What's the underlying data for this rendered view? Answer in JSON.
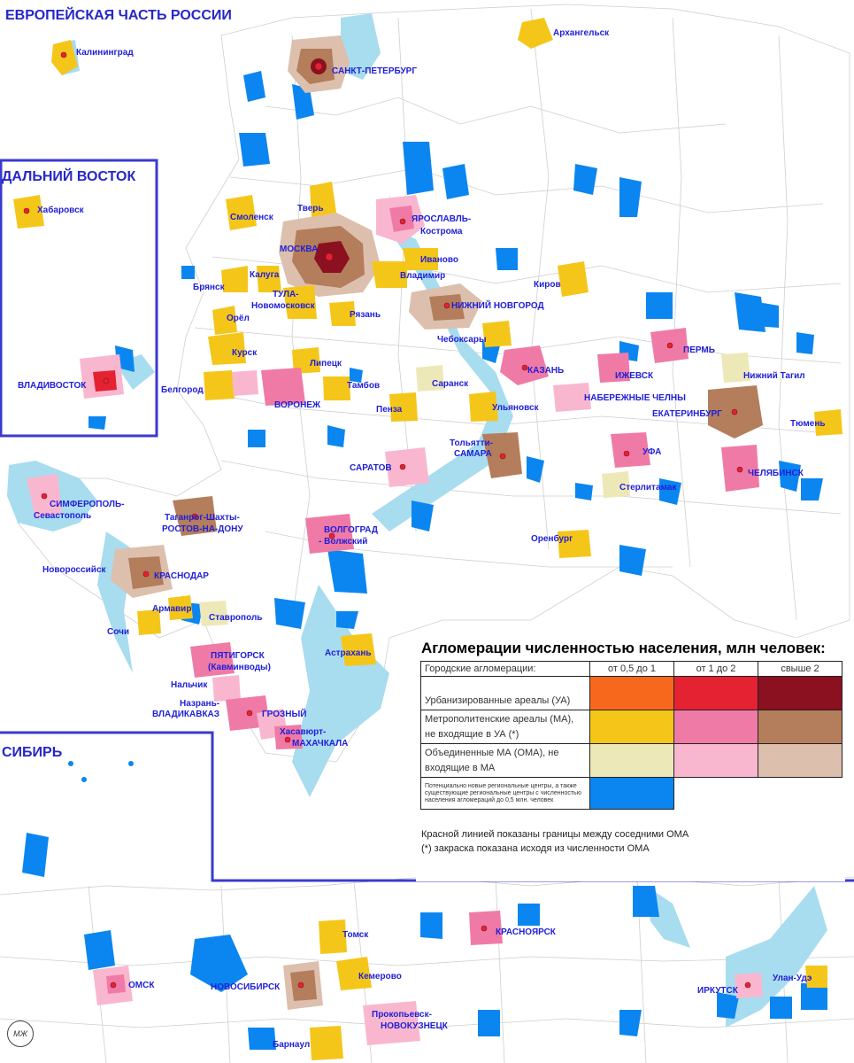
{
  "titles": {
    "europe": "ЕВРОПЕЙСКАЯ ЧАСТЬ РОССИИ",
    "far_east": "ДАЛЬНИЙ ВОСТОК",
    "siberia": "СИБИРЬ"
  },
  "cities": {
    "kaliningrad": "Калининград",
    "arkhangelsk": "Архангельск",
    "spb": "САНКТ-ПЕТЕРБУРГ",
    "khabarovsk": "Хабаровск",
    "vladivostok": "ВЛАДИВОСТОК",
    "smolensk": "Смоленск",
    "tver": "Тверь",
    "yaroslavl": "ЯРОСЛАВЛЬ-",
    "kostroma": "Кострома",
    "moscow": "МОСКВА",
    "ivanovo": "Иваново",
    "bryansk": "Брянск",
    "kaluga": "Калуга",
    "vladimir": "Владимир",
    "kirov": "Киров",
    "tula": "ТУЛА-",
    "novomoskovsk": "Новомосковск",
    "orel": "Орёл",
    "ryazan": "Рязань",
    "nnovgorod": "НИЖНИЙ НОВГОРОД",
    "cheboksary": "Чебоксары",
    "kursk": "Курск",
    "lipetsk": "Липецк",
    "perm": "ПЕРМЬ",
    "kazan": "КАЗАНЬ",
    "izhevsk": "ИЖЕВСК",
    "ntagil": "Нижний Тагил",
    "belgorod": "Белгород",
    "voronezh": "ВОРОНЕЖ",
    "tambov": "Тамбов",
    "saransk": "Саранск",
    "nchelny": "НАБЕРЕЖНЫЕ ЧЕЛНЫ",
    "penza": "Пенза",
    "ulyanovsk": "Ульяновск",
    "ekaterinburg": "ЕКАТЕРИНБУРГ",
    "tyumen": "Тюмень",
    "tolyatti": "Тольятти-",
    "samara": "САМАРА",
    "ufa": "УФА",
    "saratov": "САРАТОВ",
    "chelyabinsk": "ЧЕЛЯБИНСК",
    "sterlitamak": "Стерлитамак",
    "simferopol": "СИМФЕРОПОЛЬ-",
    "sevastopol": "Севастополь",
    "taganrog": "Таганрог-Шахты-",
    "rostov": "РОСТОВ-НА-ДОНУ",
    "volgograd": "ВОЛГОГРАД",
    "volzhsky": "- Волжский",
    "orenburg": "Оренбург",
    "novorossiysk": "Новороссийск",
    "krasnodar": "КРАСНОДАР",
    "armavir": "Армавир",
    "stavropol": "Ставрополь",
    "sochi": "Сочи",
    "astrakhan": "Астрахань",
    "pyatigorsk": "ПЯТИГОРСК",
    "kavminvody": "(Кавминводы)",
    "nalchik": "Нальчик",
    "nazran": "Назрань-",
    "vladikavkaz": "ВЛАДИКАВКАЗ",
    "grozny": "ГРОЗНЫЙ",
    "khasavyurt": "Хасавюрт-",
    "makhachkala": "МАХАЧКАЛА",
    "krasnoyarsk": "КРАСНОЯРСК",
    "tomsk": "Томск",
    "kemerovo": "Кемерово",
    "omsk": "ОМСК",
    "novosibirsk": "НОВОСИБИРСК",
    "irkutsk": "ИРКУТСК",
    "ulanude": "Улан-Удэ",
    "prokopyevsk": "Прокопьевск-",
    "novokuznetsk": "НОВОКУЗНЕЦК",
    "barnaul": "Барнаул"
  },
  "legend": {
    "title": "Агломерации численностью населения, млн  человек:",
    "header": {
      "col0": "Городские агломерации:",
      "col1": "от 0,5 до 1",
      "col2": "от 1 до 2",
      "col3": "свыше 2"
    },
    "rows": {
      "ua": "Урбанизированные ареалы (УА)",
      "ma": "Метрополитенские ареалы (МА), не входящие в УА (*)",
      "oma": "Объединенные МА (ОМА), не входящие в МА",
      "new": "Потенциально новые региональные центры, а также существующие региональные центры с численностью населения агломераций до 0,5 млн. человек"
    },
    "note1": "Красной линией показаны границы между соседними ОМА",
    "note2": "(*) закраска показана исходя из численности ОМА"
  },
  "colors": {
    "ua_small": "#f8681c",
    "ua_mid": "#e52232",
    "ua_big": "#8b1020",
    "ma_small": "#f5c61a",
    "ma_mid": "#f07aa6",
    "ma_big": "#b47d5b",
    "oma_small": "#ede8b8",
    "oma_mid": "#f9b7cf",
    "oma_big": "#ddbfae",
    "new_center": "#0b86f0",
    "water": "#a8dcef",
    "frame": "#3a3ad0",
    "label": "#1f1fd8"
  },
  "logo": {
    "text": "МЖ"
  }
}
